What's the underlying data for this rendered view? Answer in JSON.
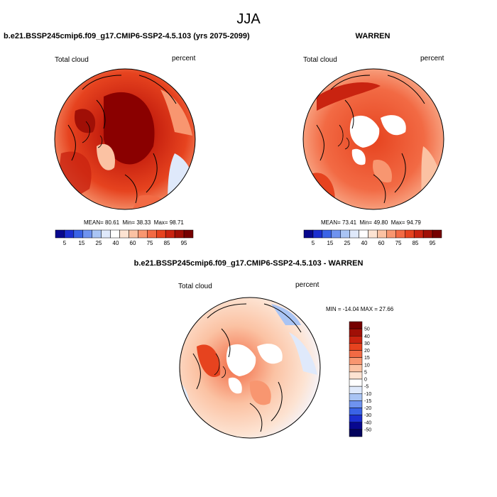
{
  "figure": {
    "title": "JJA"
  },
  "panels": {
    "model": {
      "title": "b.e21.BSSP245cmip6.f09_g17.CMIP6-SSP2-4.5.103 (yrs 2075-2099)",
      "variable": "Total cloud",
      "units": "percent",
      "stats": {
        "mean_label": "MEAN=",
        "mean": "80.61",
        "min_label": "Min=",
        "min": "38.33",
        "max_label": "Max=",
        "max": "98.71"
      }
    },
    "obs": {
      "title": "WARREN",
      "variable": "Total cloud",
      "units": "percent",
      "stats": {
        "mean_label": "MEAN=",
        "mean": "73.41",
        "min_label": "Min=",
        "min": "49.80",
        "max_label": "Max=",
        "max": "94.79"
      }
    },
    "diff": {
      "title": "b.e21.BSSP245cmip6.f09_g17.CMIP6-SSP2-4.5.103 - WARREN",
      "variable": "Total cloud",
      "units": "percent",
      "stats_text": "MIN = -14.04 MAX =  27.66"
    }
  },
  "chart_data": [
    {
      "type": "heatmap",
      "projection": "north polar stereographic",
      "title": "b.e21.BSSP245cmip6.f09_g17.CMIP6-SSP2-4.5.103 (yrs 2075-2099)",
      "variable": "Total cloud",
      "units": "percent",
      "mean": 80.61,
      "min": 38.33,
      "max": 98.71,
      "colorbar": {
        "orientation": "horizontal",
        "tick_labels": [
          "5",
          "15",
          "25",
          "40",
          "60",
          "75",
          "85",
          "95"
        ]
      }
    },
    {
      "type": "heatmap",
      "projection": "north polar stereographic",
      "title": "WARREN",
      "variable": "Total cloud",
      "units": "percent",
      "mean": 73.41,
      "min": 49.8,
      "max": 94.79,
      "colorbar": {
        "orientation": "horizontal",
        "tick_labels": [
          "5",
          "15",
          "25",
          "40",
          "60",
          "75",
          "85",
          "95"
        ]
      }
    },
    {
      "type": "heatmap",
      "projection": "north polar stereographic",
      "title": "b.e21.BSSP245cmip6.f09_g17.CMIP6-SSP2-4.5.103 - WARREN",
      "variable": "Total cloud",
      "units": "percent",
      "min": -14.04,
      "max": 27.66,
      "colorbar": {
        "orientation": "vertical",
        "tick_labels": [
          "50",
          "40",
          "30",
          "20",
          "15",
          "10",
          "5",
          "0",
          "-5",
          "-10",
          "-15",
          "-20",
          "-30",
          "-40",
          "-50"
        ]
      }
    }
  ],
  "colors": {
    "abs_scale": [
      "#08088e",
      "#1c2fd0",
      "#3a63e6",
      "#6f93ef",
      "#a9c4f4",
      "#dfe9fb",
      "#ffffff",
      "#fde3d2",
      "#fbc2a3",
      "#f89670",
      "#f26a44",
      "#e6431f",
      "#c92310",
      "#a00f06",
      "#760000"
    ],
    "diff_scale": [
      "#760000",
      "#a00f06",
      "#c92310",
      "#e6431f",
      "#f26a44",
      "#f89670",
      "#fbc2a3",
      "#fde3d2",
      "#ffffff",
      "#dfe9fb",
      "#a9c4f4",
      "#6f93ef",
      "#3a63e6",
      "#1c2fd0",
      "#08088e",
      "#04045e"
    ]
  }
}
